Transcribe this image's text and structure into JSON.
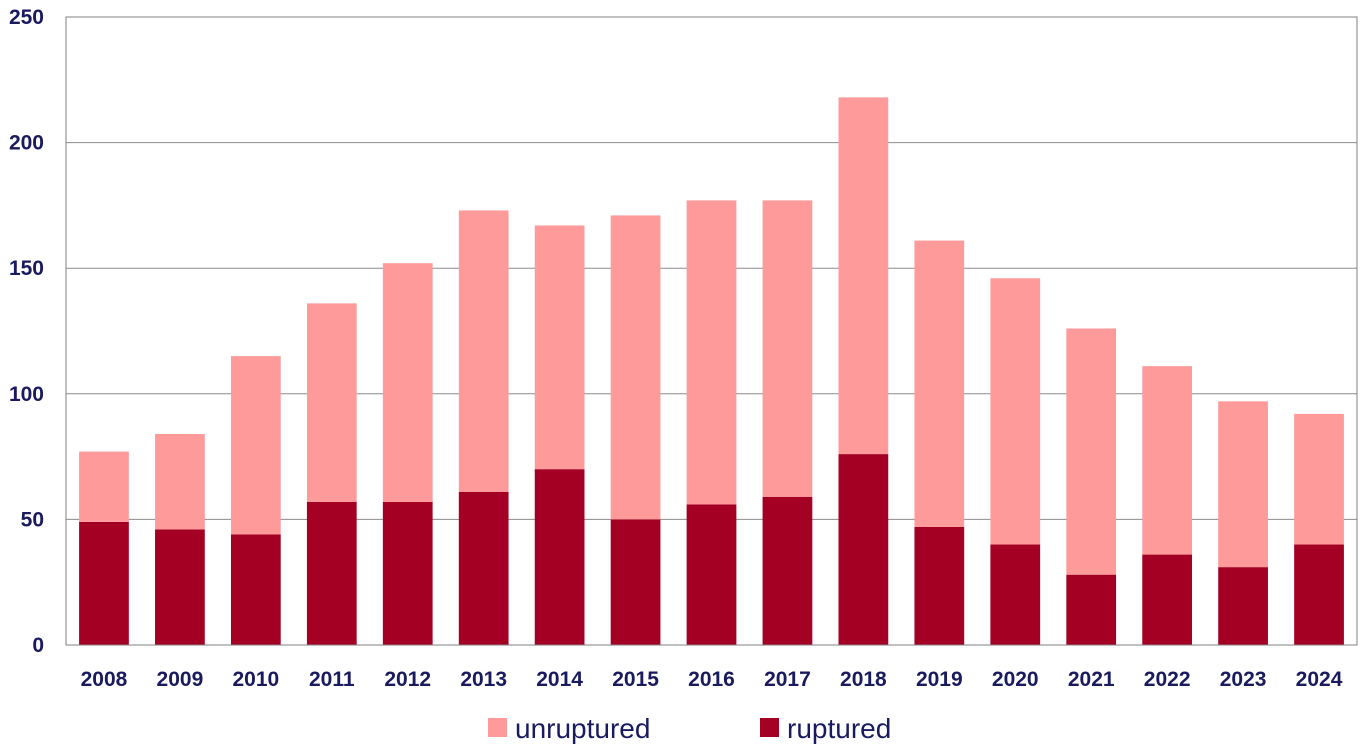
{
  "chart_data": {
    "type": "bar",
    "stacked": true,
    "categories": [
      "2008",
      "2009",
      "2010",
      "2011",
      "2012",
      "2013",
      "2014",
      "2015",
      "2016",
      "2017",
      "2018",
      "2019",
      "2020",
      "2021",
      "2022",
      "2023",
      "2024"
    ],
    "series": [
      {
        "name": "ruptured",
        "color": "#a30023",
        "values": [
          49,
          46,
          44,
          57,
          57,
          61,
          70,
          50,
          56,
          59,
          76,
          47,
          40,
          28,
          36,
          31,
          40
        ]
      },
      {
        "name": "unruptured",
        "color": "#fe9a9a",
        "values": [
          28,
          38,
          71,
          79,
          95,
          112,
          97,
          121,
          121,
          118,
          142,
          114,
          106,
          98,
          75,
          66,
          52
        ]
      }
    ],
    "ylim": [
      0,
      250
    ],
    "yticks": [
      "0",
      "50",
      "100",
      "150",
      "200",
      "250"
    ],
    "grid": true,
    "legend": {
      "placement": "bottom",
      "order": [
        "unruptured",
        "ruptured"
      ]
    },
    "title": "",
    "xlabel": "",
    "ylabel": ""
  }
}
